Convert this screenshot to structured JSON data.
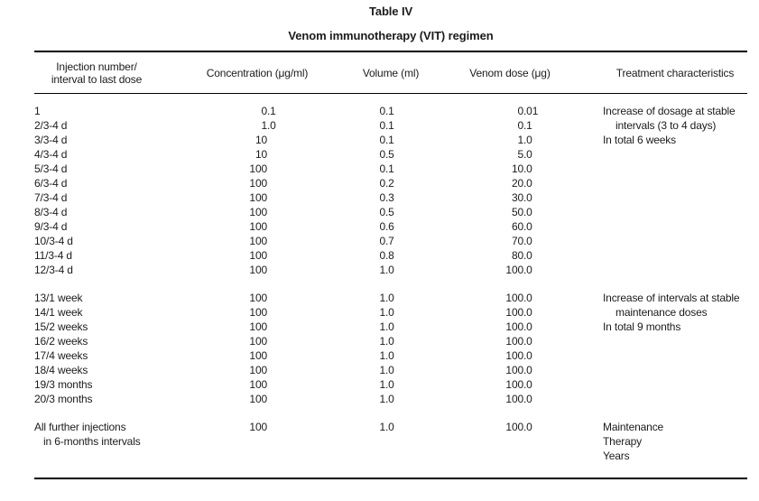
{
  "table": {
    "title": "Table IV",
    "subtitle": "Venom immunotherapy (VIT) regimen",
    "headers": {
      "injection": [
        "Injection number/",
        "interval to last dose"
      ],
      "concentration": "Concentration (μg/ml)",
      "volume": "Volume (ml)",
      "dose": "Venom dose (μg)",
      "treatment": "Treatment characteristics"
    },
    "groups": [
      {
        "rows": [
          {
            "injection": "1",
            "concentration": "0.1",
            "volume": "0.1",
            "dose": "0.01"
          },
          {
            "injection": "2/3-4 d",
            "concentration": "1.0",
            "volume": "0.1",
            "dose": "0.1"
          },
          {
            "injection": "3/3-4 d",
            "concentration": "10",
            "volume": "0.1",
            "dose": "1.0"
          },
          {
            "injection": "4/3-4 d",
            "concentration": "10",
            "volume": "0.5",
            "dose": "5.0"
          },
          {
            "injection": "5/3-4 d",
            "concentration": "100",
            "volume": "0.1",
            "dose": "10.0"
          },
          {
            "injection": "6/3-4 d",
            "concentration": "100",
            "volume": "0.2",
            "dose": "20.0"
          },
          {
            "injection": "7/3-4 d",
            "concentration": "100",
            "volume": "0.3",
            "dose": "30.0"
          },
          {
            "injection": "8/3-4 d",
            "concentration": "100",
            "volume": "0.5",
            "dose": "50.0"
          },
          {
            "injection": "9/3-4 d",
            "concentration": "100",
            "volume": "0.6",
            "dose": "60.0"
          },
          {
            "injection": "10/3-4 d",
            "concentration": "100",
            "volume": "0.7",
            "dose": "70.0"
          },
          {
            "injection": "11/3-4 d",
            "concentration": "100",
            "volume": "0.8",
            "dose": "80.0"
          },
          {
            "injection": "12/3-4 d",
            "concentration": "100",
            "volume": "1.0",
            "dose": "100.0"
          }
        ],
        "note": [
          {
            "text": "Increase of dosage at stable",
            "indent": false
          },
          {
            "text": "intervals (3 to 4 days)",
            "indent": true
          },
          {
            "text": "In total 6 weeks",
            "indent": false
          }
        ]
      },
      {
        "rows": [
          {
            "injection": "13/1 week",
            "concentration": "100",
            "volume": "1.0",
            "dose": "100.0"
          },
          {
            "injection": "14/1 week",
            "concentration": "100",
            "volume": "1.0",
            "dose": "100.0"
          },
          {
            "injection": "15/2 weeks",
            "concentration": "100",
            "volume": "1.0",
            "dose": "100.0"
          },
          {
            "injection": "16/2 weeks",
            "concentration": "100",
            "volume": "1.0",
            "dose": "100.0"
          },
          {
            "injection": "17/4 weeks",
            "concentration": "100",
            "volume": "1.0",
            "dose": "100.0"
          },
          {
            "injection": "18/4 weeks",
            "concentration": "100",
            "volume": "1.0",
            "dose": "100.0"
          },
          {
            "injection": "19/3 months",
            "concentration": "100",
            "volume": "1.0",
            "dose": "100.0"
          },
          {
            "injection": "20/3 months",
            "concentration": "100",
            "volume": "1.0",
            "dose": "100.0"
          }
        ],
        "note": [
          {
            "text": "Increase of intervals at stable",
            "indent": false
          },
          {
            "text": "maintenance doses",
            "indent": true
          },
          {
            "text": "In total 9 months",
            "indent": false
          }
        ]
      },
      {
        "rows": [
          {
            "injection": [
              "All further injections",
              "in 6-months intervals"
            ],
            "concentration": "100",
            "volume": "1.0",
            "dose": "100.0"
          }
        ],
        "note": [
          {
            "text": "Maintenance",
            "indent": false
          },
          {
            "text": "Therapy",
            "indent": false
          },
          {
            "text": "Years",
            "indent": false
          }
        ]
      }
    ]
  }
}
